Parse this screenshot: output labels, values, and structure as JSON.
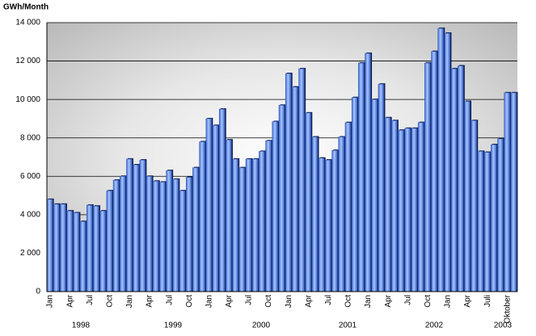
{
  "chart_data": {
    "type": "bar",
    "title": "GWh/Month",
    "categories": [
      "Jan",
      null,
      null,
      "Apr",
      null,
      null,
      "Jul",
      null,
      null,
      "Oct",
      null,
      null,
      "Jan",
      null,
      null,
      "Apr",
      null,
      null,
      "Jul",
      null,
      null,
      "Oct",
      null,
      null,
      "Jan",
      null,
      null,
      "Apr",
      null,
      null,
      "Jul",
      null,
      null,
      "Oct",
      null,
      null,
      "Jan",
      null,
      null,
      "Apr",
      null,
      null,
      "Jul",
      null,
      null,
      "Oct",
      null,
      null,
      "Jan",
      null,
      null,
      "Apr",
      null,
      null,
      "Jul",
      null,
      null,
      "Oct",
      null,
      null,
      "Jan",
      null,
      null,
      "Apr",
      null,
      null,
      "Juli",
      null,
      null,
      "Oktober",
      null
    ],
    "year_labels": [
      "1998",
      "1999",
      "2000",
      "2001",
      "2002",
      "2003"
    ],
    "values": [
      4800,
      4550,
      4550,
      4200,
      4100,
      3650,
      4500,
      4450,
      4200,
      5250,
      5800,
      6000,
      6900,
      6600,
      6850,
      6000,
      5750,
      5700,
      6300,
      5850,
      5250,
      5950,
      6450,
      7800,
      9000,
      8650,
      9500,
      7900,
      6900,
      6450,
      6900,
      6900,
      7300,
      7850,
      8850,
      9700,
      11350,
      10650,
      11600,
      9300,
      8050,
      6950,
      6850,
      7350,
      8050,
      8800,
      10100,
      11900,
      12400,
      10000,
      10800,
      9050,
      8900,
      8400,
      8500,
      8500,
      8800,
      11900,
      12500,
      13700,
      13450,
      11600,
      11750,
      9900,
      8900,
      7300,
      7250,
      7650,
      7950,
      10350,
      10350
    ],
    "color": "#5b8de8",
    "ylim": [
      0,
      14000
    ],
    "yticks": [
      0,
      {
        "value": 2000,
        "label": "2 000"
      },
      {
        "value": 4000,
        "label": "4 000"
      },
      {
        "value": 6000,
        "label": "6 000"
      },
      {
        "value": 8000,
        "label": "8 000"
      },
      {
        "value": 10000,
        "label": "10 000"
      },
      {
        "value": 12000,
        "label": "12 000"
      },
      {
        "value": 14000,
        "label": "14 000"
      }
    ],
    "grid": true
  }
}
